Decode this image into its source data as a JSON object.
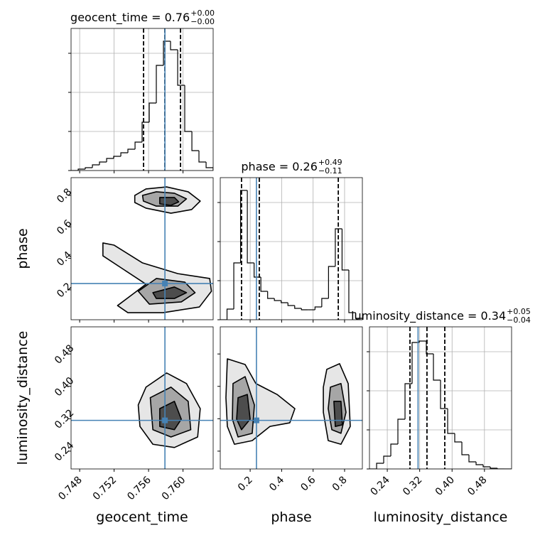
{
  "chart_data": {
    "type": "corner",
    "truth_color": "#4682b4",
    "contour_fills": [
      "#e6e6e6",
      "#a6a6a6",
      "#4d4d4d"
    ],
    "contour_line": "#000000",
    "hist_ylim": [
      0,
      200
    ],
    "hist_yticks": [
      0,
      55,
      110,
      165
    ],
    "grid": true,
    "parameters": [
      {
        "name": "geocent_time",
        "title": {
          "text": "geocent_time = 0.76",
          "plus": "+0.00",
          "minus": "−0.00"
        },
        "xlim": [
          0.747,
          0.7635
        ],
        "xticks": [
          0.748,
          0.752,
          0.756,
          {
            "value": 0.76,
            "label": "0.760"
          }
        ],
        "truth": 0.7579,
        "quantiles": [
          0.75542,
          0.75789,
          0.75971
        ],
        "bins": [
          0.747,
          0.74783,
          0.74865,
          0.74948,
          0.7503,
          0.75113,
          0.75195,
          0.75278,
          0.7536,
          0.75443,
          0.75525,
          0.75608,
          0.7569,
          0.75773,
          0.75855,
          0.75938,
          0.7602,
          0.76103,
          0.76185,
          0.76268,
          0.7635
        ],
        "counts": [
          0,
          2,
          4,
          8,
          12,
          17,
          20,
          25,
          30,
          40,
          68,
          95,
          148,
          182,
          170,
          120,
          55,
          28,
          12,
          4
        ]
      },
      {
        "name": "phase",
        "title": {
          "text": "phase = 0.26",
          "plus": "+0.49",
          "minus": "−0.11"
        },
        "xlim": [
          0.01,
          0.913
        ],
        "xticks": [
          0.2,
          0.4,
          0.6,
          0.8
        ],
        "truth": 0.24,
        "quantiles": [
          0.145,
          0.258,
          0.76
        ],
        "bins": [
          0.01,
          0.053,
          0.096,
          0.139,
          0.182,
          0.225,
          0.268,
          0.311,
          0.354,
          0.397,
          0.44,
          0.483,
          0.526,
          0.569,
          0.612,
          0.655,
          0.698,
          0.741,
          0.784,
          0.827,
          0.87,
          0.913
        ],
        "counts": [
          0,
          15,
          80,
          182,
          80,
          60,
          40,
          30,
          27,
          24,
          20,
          16,
          14,
          14,
          18,
          30,
          75,
          128,
          70,
          10,
          2
        ]
      },
      {
        "name": "luminosity_distance",
        "title": {
          "text": "luminosity_distance = 0.34",
          "plus": "+0.05",
          "minus": "−0.04"
        },
        "xlim": [
          0.196,
          0.547
        ],
        "xticks": [
          0.24,
          0.32,
          {
            "value": 0.4,
            "label": "0.40"
          },
          0.48
        ],
        "truth": 0.316,
        "quantiles": [
          0.296,
          0.338,
          0.382
        ],
        "bins": [
          0.196,
          0.2136,
          0.2311,
          0.2487,
          0.2662,
          0.2838,
          0.3013,
          0.3189,
          0.3364,
          0.354,
          0.3715,
          0.3891,
          0.4066,
          0.4242,
          0.4417,
          0.4593,
          0.4768,
          0.4944,
          0.5119,
          0.5295,
          0.547
        ],
        "counts": [
          0,
          8,
          18,
          35,
          70,
          120,
          178,
          180,
          162,
          125,
          85,
          50,
          38,
          20,
          10,
          6,
          3,
          1,
          0,
          0
        ]
      }
    ],
    "panels": [
      {
        "contours": [
          [
            {
              "x": [
                0.7544,
                0.7557,
                0.7581,
                0.7606,
                0.762,
                0.761,
                0.7586,
                0.7557,
                0.7544
              ],
              "y": [
                0.8,
                0.841,
                0.854,
                0.823,
                0.764,
                0.71,
                0.687,
                0.719,
                0.755
              ]
            },
            {
              "x": [
                0.7553,
                0.7569,
                0.759,
                0.7604,
                0.7594,
                0.7569,
                0.7554
              ],
              "y": [
                0.8,
                0.823,
                0.814,
                0.778,
                0.732,
                0.732,
                0.764
              ]
            },
            {
              "x": [
                0.7573,
                0.759,
                0.7595,
                0.7586,
                0.7573
              ],
              "y": [
                0.787,
                0.787,
                0.759,
                0.737,
                0.746
              ]
            }
          ],
          [
            {
              "x": [
                0.7507,
                0.752,
                0.7553,
                0.7594,
                0.7631,
                0.7633,
                0.7619,
                0.7577,
                0.7536,
                0.7524,
                0.7544,
                0.7557,
                0.7532,
                0.7507
              ],
              "y": [
                0.498,
                0.484,
                0.371,
                0.303,
                0.272,
                0.191,
                0.091,
                0.055,
                0.055,
                0.1,
                0.182,
                0.236,
                0.326,
                0.416
              ]
            },
            {
              "x": [
                0.7548,
                0.7569,
                0.7602,
                0.7614,
                0.7598,
                0.7561
              ],
              "y": [
                0.191,
                0.272,
                0.249,
                0.182,
                0.123,
                0.109
              ]
            },
            {
              "x": [
                0.7565,
                0.759,
                0.7604,
                0.759,
                0.7569
              ],
              "y": [
                0.182,
                0.218,
                0.182,
                0.145,
                0.145
              ]
            }
          ]
        ]
      },
      {
        "contours": [
          [
            {
              "x": [
                0.7557,
                0.7581,
                0.7604,
                0.762,
                0.7617,
                0.759,
                0.7565,
                0.755,
                0.7548
              ],
              "y": [
                0.398,
                0.433,
                0.407,
                0.345,
                0.275,
                0.249,
                0.257,
                0.301,
                0.354
              ]
            },
            {
              "x": [
                0.7562,
                0.7586,
                0.7606,
                0.7609,
                0.7586,
                0.7565
              ],
              "y": [
                0.372,
                0.398,
                0.363,
                0.293,
                0.275,
                0.293
              ]
            },
            {
              "x": [
                0.7573,
                0.759,
                0.7598,
                0.759,
                0.7573
              ],
              "y": [
                0.345,
                0.363,
                0.319,
                0.293,
                0.301
              ]
            }
          ]
        ]
      },
      {
        "contours": [
          [
            {
              "x": [
                0.055,
                0.168,
                0.236,
                0.371,
                0.484,
                0.452,
                0.326,
                0.213,
                0.1,
                0.055,
                0.046
              ],
              "y": [
                0.468,
                0.454,
                0.407,
                0.38,
                0.345,
                0.31,
                0.301,
                0.266,
                0.257,
                0.301,
                0.372
              ]
            },
            {
              "x": [
                0.091,
                0.168,
                0.227,
                0.213,
                0.123,
                0.087
              ],
              "y": [
                0.407,
                0.424,
                0.354,
                0.284,
                0.275,
                0.319
              ]
            },
            {
              "x": [
                0.123,
                0.182,
                0.2,
                0.145,
                0.114
              ],
              "y": [
                0.372,
                0.38,
                0.319,
                0.293,
                0.319
              ]
            }
          ],
          [
            {
              "x": [
                0.687,
                0.768,
                0.823,
                0.836,
                0.777,
                0.696,
                0.665,
                0.665
              ],
              "y": [
                0.442,
                0.456,
                0.407,
                0.301,
                0.257,
                0.266,
                0.336,
                0.398
              ]
            },
            {
              "x": [
                0.71,
                0.777,
                0.809,
                0.777,
                0.719,
                0.696
              ],
              "y": [
                0.398,
                0.407,
                0.336,
                0.284,
                0.293,
                0.345
              ]
            },
            {
              "x": [
                0.732,
                0.777,
                0.786,
                0.741
              ],
              "y": [
                0.363,
                0.363,
                0.305,
                0.301
              ]
            }
          ]
        ]
      }
    ]
  }
}
